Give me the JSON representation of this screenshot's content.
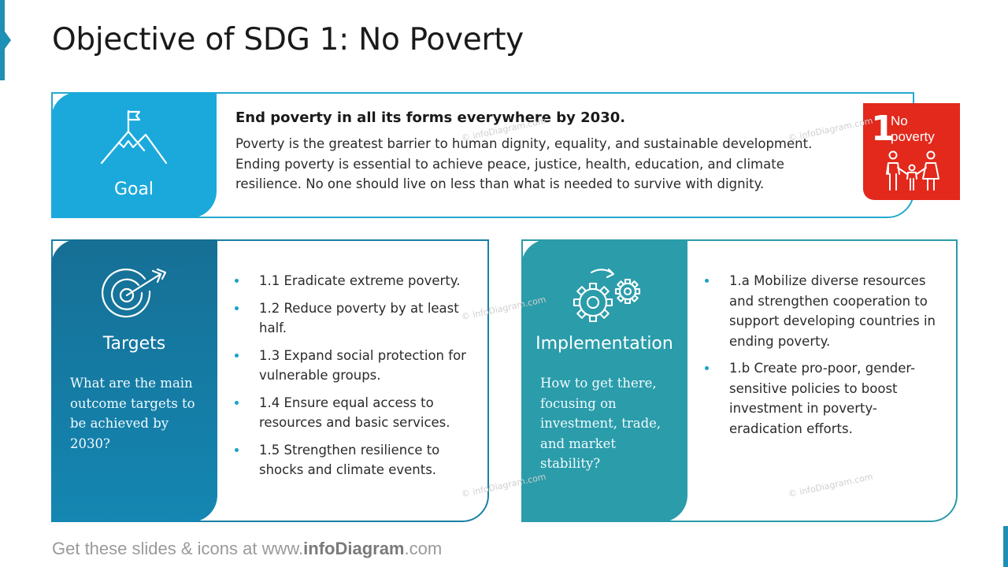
{
  "title": "Objective of SDG 1: No Poverty",
  "goal": {
    "label": "Goal",
    "icon": "mountain-flag-icon",
    "heading": "End poverty in all its forms everywhere by 2030.",
    "body": "Poverty is the greatest barrier to human dignity, equality, and sustainable development. Ending poverty is essential to achieve peace, justice, health, education, and climate resilience. No one should live on less than what is needed to survive with dignity."
  },
  "sdg_badge": {
    "number": "1",
    "label": "No poverty",
    "icon": "family-icon",
    "color": "#e2291c"
  },
  "targets": {
    "label": "Targets",
    "icon": "target-arrow-icon",
    "question": "What are the main outcome targets to be achieved by 2030?",
    "items": [
      "1.1 Eradicate extreme poverty.",
      "1.2 Reduce poverty by at least half.",
      "1.3 Expand social protection for vulnerable groups.",
      "1.4 Ensure equal access to resources and basic services.",
      "1.5 Strengthen resilience to shocks and climate events."
    ]
  },
  "implementation": {
    "label": "Implementation",
    "icon": "gears-icon",
    "question": "How to get there, focusing on investment, trade, and market stability?",
    "items": [
      "1.a Mobilize diverse resources and strengthen cooperation to support developing countries in ending poverty.",
      "1.b Create pro-poor, gender-sensitive policies to boost investment in poverty-eradication efforts."
    ]
  },
  "watermark": "© infoDiagram.com",
  "footer": {
    "prefix": "Get these slides & icons at www.",
    "brand": "infoDiagram",
    "suffix": ".com"
  },
  "colors": {
    "goal_panel": "#1ba9dc",
    "targets_panel": "#1487b2",
    "implementation_panel": "#2b9caa",
    "accent": "#1e8fb5"
  }
}
